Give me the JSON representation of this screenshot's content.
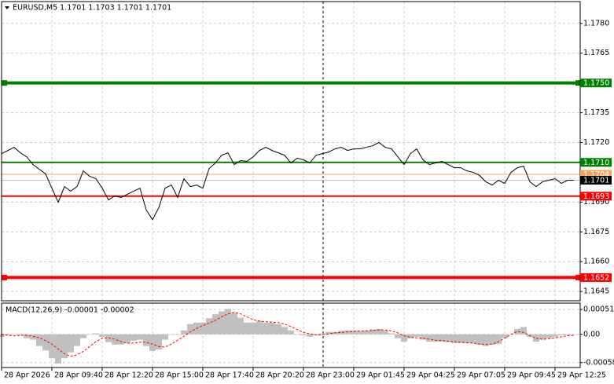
{
  "chart_data": [
    {
      "type": "line",
      "title": "EURUSD,M5  1.1701 1.1703 1.1701 1.1701",
      "categories": [
        "28 Apr 2026",
        null,
        null,
        null,
        null,
        null,
        null,
        null,
        "28 Apr 09:40",
        null,
        null,
        null,
        null,
        null,
        null,
        null,
        "28 Apr 12:20",
        null,
        null,
        null,
        null,
        null,
        null,
        null,
        "28 Apr 15:00",
        null,
        null,
        null,
        null,
        null,
        null,
        null,
        "28 Apr 17:40",
        null,
        null,
        null,
        null,
        null,
        null,
        null,
        "28 Apr 20:20",
        null,
        null,
        null,
        null,
        null,
        null,
        null,
        "28 Apr 23:00",
        null,
        null,
        null,
        null,
        null,
        null,
        null,
        "29 Apr 01:45",
        null,
        null,
        null,
        null,
        null,
        null,
        null,
        "29 Apr 04:25",
        null,
        null,
        null,
        null,
        null,
        null,
        null,
        "29 Apr 07:05",
        null,
        null,
        null,
        null,
        null,
        null,
        null,
        "29 Apr 09:45",
        null,
        null,
        null,
        null,
        null,
        null,
        null,
        "29 Apr 12:25",
        null,
        null,
        null
      ],
      "values": [
        1.17144,
        1.1716,
        1.17176,
        1.17148,
        1.17128,
        1.17089,
        1.17065,
        1.17042,
        1.1697,
        1.16899,
        1.16978,
        1.16955,
        1.16978,
        1.17057,
        1.1703,
        1.17018,
        1.1697,
        1.16911,
        1.16931,
        1.16923,
        1.16939,
        1.16955,
        1.1697,
        1.1686,
        1.16812,
        1.16872,
        1.1697,
        1.16986,
        1.16923,
        1.17018,
        1.16978,
        1.16986,
        1.1697,
        1.17069,
        1.17097,
        1.17136,
        1.17148,
        1.17089,
        1.17109,
        1.17105,
        1.17128,
        1.1716,
        1.17176,
        1.1716,
        1.17148,
        1.17136,
        1.17097,
        1.17121,
        1.17113,
        1.17097,
        1.17136,
        1.17144,
        1.17152,
        1.17168,
        1.17176,
        1.1716,
        1.17168,
        1.17168,
        1.17176,
        1.17184,
        1.172,
        1.17176,
        1.17168,
        1.17128,
        1.17089,
        1.17144,
        1.17168,
        1.17113,
        1.17089,
        1.17097,
        1.17105,
        1.17089,
        1.17073,
        1.17073,
        1.17057,
        1.1705,
        1.17034,
        1.17002,
        1.16986,
        1.1701,
        1.16994,
        1.1705,
        1.17073,
        1.17081,
        1.17002,
        1.16978,
        1.17002,
        1.1701,
        1.17018,
        1.16994,
        1.1701,
        1.1701
      ],
      "color": "#000000",
      "ylim": [
        1.16403,
        1.1791
      ],
      "yticks": [
        {
          "value": 1.178,
          "label": "1.1780"
        },
        1.1765,
        1.1735,
        {
          "value": 1.172,
          "label": "1.1720"
        },
        {
          "value": 1.169,
          "label": "1.1690"
        },
        1.1675,
        {
          "value": 1.166,
          "label": "1.1660"
        },
        1.1645
      ],
      "grid": true,
      "levels": [
        {
          "value": 1.175,
          "label": "1.1750",
          "color": "#008000",
          "weight": "thick"
        },
        {
          "value": 1.171,
          "label": "1.1710",
          "color": "#008000",
          "weight": "thin"
        },
        {
          "value": 1.1704,
          "label": "1.1704",
          "color": "#f5a25d",
          "weight": "hair"
        },
        {
          "value": 1.1701,
          "label": "1.1701",
          "color": "#c0c0c0",
          "box": "#000000",
          "weight": "hair"
        },
        {
          "value": 1.1693,
          "label": "1.1693",
          "color": "#ff0000",
          "weight": "thin"
        },
        {
          "value": 1.1652,
          "label": "1.1652",
          "color": "#ff0000",
          "weight": "thick"
        }
      ]
    },
    {
      "type": "bar",
      "title": "MACD(12,26,9) -0.00001 -0.00002",
      "series": [
        {
          "color": "#c0c0c0",
          "style": "histogram",
          "values": [
            -5e-05,
            -2e-05,
            0,
            -2e-05,
            -8e-05,
            -0.00011,
            -0.00024,
            -0.00033,
            -0.00049,
            -0.0006,
            -0.00049,
            -0.00037,
            -0.00024,
            -8e-05,
            0,
            2e-05,
            -5e-05,
            -0.00016,
            -0.00021,
            -0.00021,
            -0.00018,
            -0.00013,
            -0.00011,
            -0.00024,
            -0.00034,
            -0.00031,
            -0.00011,
            0,
            0,
            8e-05,
            0.00021,
            0.00024,
            0.00024,
            0.00033,
            0.00041,
            0.00047,
            0.00052,
            0.00044,
            0.00034,
            0.00024,
            0.00024,
            0.00028,
            0.00024,
            0.00024,
            0.00021,
            0.00015,
            8e-05,
            0,
            -2e-05,
            -5e-05,
            -2e-05,
            2e-05,
            5e-05,
            5e-05,
            7e-05,
            8e-05,
            8e-05,
            7e-05,
            8e-05,
            0.0001,
            0.00011,
            8e-05,
            2e-05,
            -8e-05,
            -0.00015,
            -8e-05,
            -5e-05,
            -0.00011,
            -0.00015,
            -0.00015,
            -0.00015,
            -0.00016,
            -0.00018,
            -0.00018,
            -0.00018,
            -0.00018,
            -0.00021,
            -0.00024,
            -0.00021,
            -0.0002,
            -8e-05,
            0,
            0.00011,
            0.00015,
            -5e-05,
            -0.00015,
            -0.00011,
            -8e-05,
            -5e-05,
            -2e-05,
            -2e-05,
            -1e-05
          ]
        },
        {
          "color": "#ff0000",
          "style": "dashed",
          "values": [
            0,
            -2e-05,
            -3e-05,
            -2e-05,
            -2e-05,
            -4e-05,
            -7e-05,
            -0.00013,
            -0.0002,
            -0.0003,
            -0.0004,
            -0.00045,
            -0.00042,
            -0.00035,
            -0.00025,
            -0.00015,
            -8e-05,
            -7e-05,
            -0.0001,
            -0.00015,
            -0.00018,
            -0.00018,
            -0.00016,
            -0.00016,
            -0.0002,
            -0.00025,
            -0.00026,
            -0.0002,
            -0.00012,
            -4e-05,
            5e-05,
            0.00012,
            0.00018,
            0.00023,
            0.00029,
            0.00036,
            0.00042,
            0.00045,
            0.00042,
            0.00036,
            0.0003,
            0.00027,
            0.00026,
            0.00025,
            0.00024,
            0.00021,
            0.00016,
            0.0001,
            4e-05,
            1e-05,
            -1e-05,
            -1e-05,
            1e-05,
            3e-05,
            4e-05,
            5e-05,
            6e-05,
            7e-05,
            7e-05,
            8e-05,
            9e-05,
            9e-05,
            7e-05,
            3e-05,
            -3e-05,
            -6e-05,
            -7e-05,
            -8e-05,
            -0.0001,
            -0.00012,
            -0.00013,
            -0.00014,
            -0.00015,
            -0.00016,
            -0.00017,
            -0.00018,
            -0.0002,
            -0.00021,
            -0.0002,
            -0.00015,
            -8e-05,
            0,
            6e-05,
            4e-05,
            -3e-05,
            -8e-05,
            -0.0001,
            -9e-05,
            -7e-05,
            -5e-05,
            -3e-05,
            -2e-05
          ]
        }
      ],
      "ylim": [
        -0.00068,
        0.00064
      ],
      "yticks": [
        0.00051,
        {
          "value": 0,
          "label": "0.00"
        },
        -0.00058
      ],
      "grid": true
    }
  ]
}
